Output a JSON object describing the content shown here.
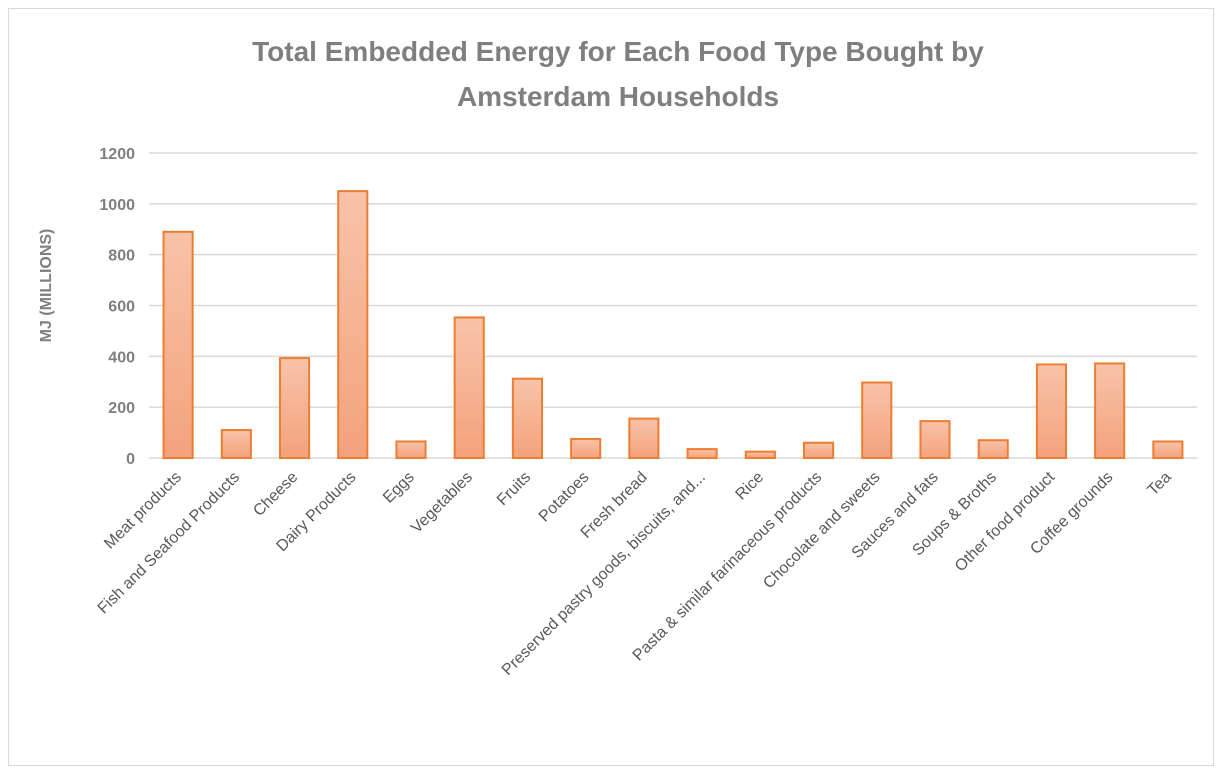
{
  "chart_data": {
    "type": "bar",
    "title_lines": [
      "Total Embedded Energy for Each Food Type Bought by",
      "Amsterdam Households"
    ],
    "ylabel": "MJ (MILLIONS)",
    "xlabel": "",
    "ylim": [
      0,
      1200
    ],
    "yticks": [
      "0",
      "200",
      "400",
      "600",
      "800",
      "1000",
      "1200"
    ],
    "grid": true,
    "legend": "none",
    "colors": {
      "fill_top": "#f8c3a8",
      "fill_bottom": "#f3a27c",
      "stroke": "#ed7d31",
      "grid": "#d9d9d9"
    },
    "categories": [
      "Meat products",
      "Fish and Seafood Products",
      "Cheese",
      "Dairy Products",
      "Eggs",
      "Vegetables",
      "Fruits",
      "Potatoes",
      "Fresh bread",
      "Preserved pastry goods, biscuits, and...",
      "Rice",
      "Pasta & similar farinaceous products",
      "Chocolate and sweets",
      "Sauces and fats",
      "Soups & Broths",
      "Other food product",
      "Coffee grounds",
      "Tea"
    ],
    "values": [
      890,
      110,
      393,
      1050,
      65,
      553,
      312,
      75,
      155,
      35,
      25,
      60,
      297,
      145,
      70,
      368,
      372,
      65
    ]
  }
}
